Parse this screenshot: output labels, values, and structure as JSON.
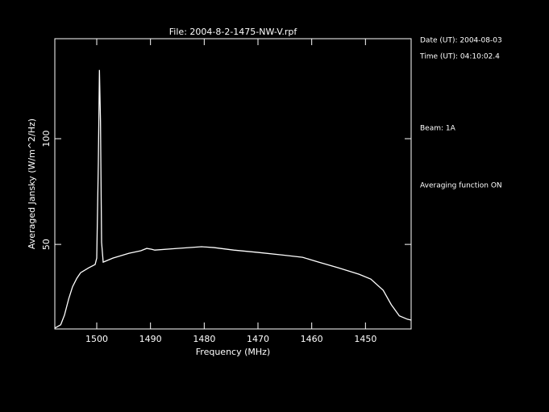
{
  "chart_data": {
    "type": "line",
    "title": "File: 2004-8-2-1475-NW-V.rpf",
    "x_label": "Frequency (MHz)",
    "y_label": "Averaged Jansky (W/m^2/Hz)",
    "annotations": [
      "Date (UT): 2004-08-03",
      "Time (UT): 04:10:02.4",
      "Beam: 1A",
      "Averaging function ON"
    ],
    "x": [
      1507.8,
      1506.7,
      1506,
      1505.2,
      1504.5,
      1503.7,
      1503,
      1501.5,
      1500.3,
      1500,
      1499.7,
      1499.5,
      1499.3,
      1499.1,
      1498.8,
      1497,
      1494,
      1491.8,
      1490.7,
      1489.8,
      1489.2,
      1485,
      1480.5,
      1478.2,
      1474.5,
      1470,
      1465.5,
      1461.7,
      1458.7,
      1455,
      1451.2,
      1449,
      1446.7,
      1445.2,
      1443.7,
      1442.2,
      1441.5
    ],
    "series": [
      {
        "color": "#ffffff",
        "values": [
          10.4,
          12,
          16.6,
          24.4,
          30,
          34,
          36.6,
          38.9,
          40.5,
          43.5,
          89,
          132.5,
          108,
          51,
          41.6,
          43.5,
          45.8,
          47,
          48.1,
          47.7,
          47.3,
          48.1,
          48.9,
          48.5,
          47.3,
          46.2,
          45,
          43.9,
          41.6,
          38.9,
          35.9,
          33.6,
          28.3,
          21.5,
          16.2,
          14.6,
          14.2
        ]
      }
    ],
    "xlim": [
      1507.8,
      1441.5
    ],
    "ylim": [
      10,
      147.3
    ],
    "xticks": [
      1500,
      1490,
      1480,
      1470,
      1460,
      1450
    ],
    "yticks": [
      50,
      100
    ]
  }
}
